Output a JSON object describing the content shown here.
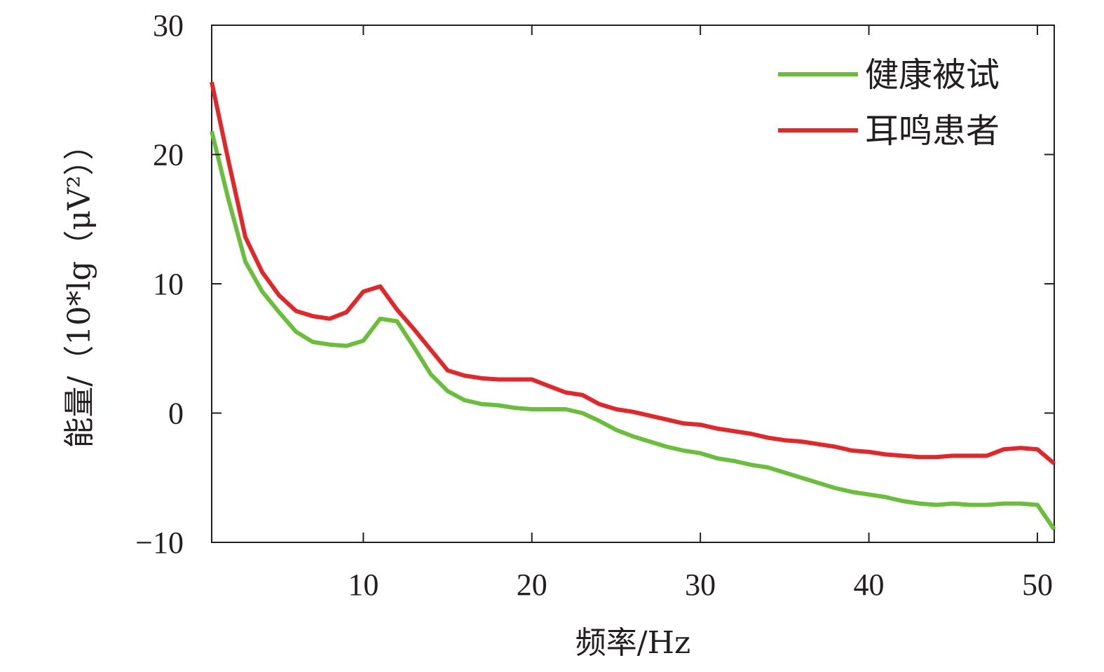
{
  "chart_data": {
    "type": "line",
    "title": "",
    "xlabel": "频率/Hz",
    "ylabel": "能量/（10*lg（μV²））",
    "xlim": [
      1,
      51
    ],
    "ylim": [
      -10,
      30
    ],
    "xticks": [
      10,
      20,
      30,
      40,
      50
    ],
    "yticks": [
      -10,
      0,
      10,
      20,
      30
    ],
    "xtick_labels": [
      "10",
      "20",
      "30",
      "40",
      "50"
    ],
    "ytick_labels": [
      "−10",
      "0",
      "10",
      "20",
      "30"
    ],
    "grid": false,
    "legend_position": "top-right",
    "x": [
      1,
      2,
      3,
      4,
      5,
      6,
      7,
      8,
      9,
      10,
      11,
      12,
      13,
      14,
      15,
      16,
      17,
      18,
      19,
      20,
      21,
      22,
      23,
      24,
      25,
      26,
      27,
      28,
      29,
      30,
      31,
      32,
      33,
      34,
      35,
      36,
      37,
      38,
      39,
      40,
      41,
      42,
      43,
      44,
      45,
      46,
      47,
      48,
      49,
      50,
      51
    ],
    "series": [
      {
        "name": "健康被试",
        "color": "#6abf3a",
        "values": [
          21.8,
          16.5,
          11.7,
          9.4,
          7.8,
          6.3,
          5.5,
          5.3,
          5.2,
          5.6,
          7.3,
          7.1,
          5.1,
          3.0,
          1.7,
          1.0,
          0.7,
          0.6,
          0.4,
          0.3,
          0.3,
          0.3,
          0.0,
          -0.6,
          -1.3,
          -1.8,
          -2.2,
          -2.6,
          -2.9,
          -3.1,
          -3.5,
          -3.7,
          -4.0,
          -4.2,
          -4.6,
          -5.0,
          -5.4,
          -5.8,
          -6.1,
          -6.3,
          -6.5,
          -6.8,
          -7.0,
          -7.1,
          -7.0,
          -7.1,
          -7.1,
          -7.0,
          -7.0,
          -7.1,
          -9.0
        ]
      },
      {
        "name": "耳鸣患者",
        "color": "#e52628",
        "values": [
          25.6,
          19.5,
          13.6,
          10.9,
          9.1,
          7.9,
          7.5,
          7.3,
          7.8,
          9.4,
          9.8,
          8.0,
          6.5,
          4.9,
          3.3,
          2.9,
          2.7,
          2.6,
          2.6,
          2.6,
          2.1,
          1.6,
          1.4,
          0.7,
          0.3,
          0.1,
          -0.2,
          -0.5,
          -0.8,
          -0.9,
          -1.2,
          -1.4,
          -1.6,
          -1.9,
          -2.1,
          -2.2,
          -2.4,
          -2.6,
          -2.9,
          -3.0,
          -3.2,
          -3.3,
          -3.4,
          -3.4,
          -3.3,
          -3.3,
          -3.3,
          -2.8,
          -2.7,
          -2.8,
          -3.9
        ]
      }
    ]
  }
}
